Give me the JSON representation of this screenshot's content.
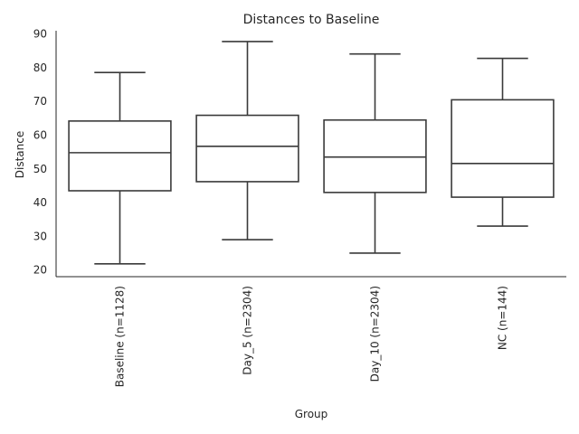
{
  "chart_data": {
    "type": "box",
    "title": "Distances to Baseline",
    "xlabel": "Group",
    "ylabel": "Distance",
    "ylim": [
      18,
      91
    ],
    "yticks": [
      20,
      30,
      40,
      50,
      60,
      70,
      80,
      90
    ],
    "grid": false,
    "categories": [
      "Baseline (n=1128)",
      "Day_5 (n=2304)",
      "Day_10 (n=2304)",
      "NC (n=144)"
    ],
    "boxes": [
      {
        "whisker_low": 21.8,
        "q1": 43.5,
        "median": 54.8,
        "q3": 64.2,
        "whisker_high": 78.6
      },
      {
        "whisker_low": 29.0,
        "q1": 46.2,
        "median": 56.7,
        "q3": 65.9,
        "whisker_high": 87.8
      },
      {
        "whisker_low": 25.0,
        "q1": 43.0,
        "median": 53.5,
        "q3": 64.5,
        "whisker_high": 84.1
      },
      {
        "whisker_low": 33.0,
        "q1": 41.6,
        "median": 51.6,
        "q3": 70.5,
        "whisker_high": 82.8
      }
    ]
  }
}
